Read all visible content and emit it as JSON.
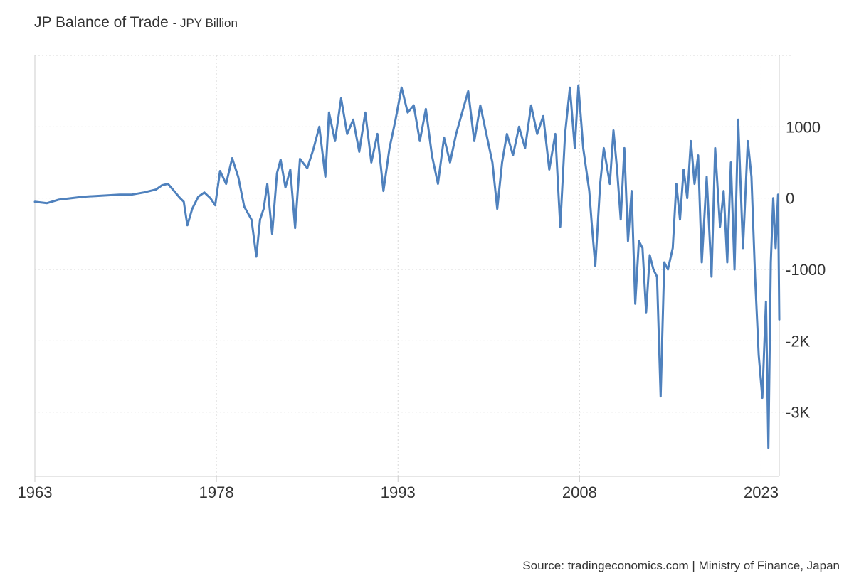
{
  "title": "JP Balance of Trade",
  "subtitle": "- JPY Billion",
  "source": "Source: tradingeconomics.com | Ministry of Finance, Japan",
  "colors": {
    "line": "#4f81bd",
    "grid": "#d9d9d9",
    "axis": "#cccccc",
    "text": "#333333"
  },
  "chart_data": {
    "type": "line",
    "title": "JP Balance of Trade",
    "subtitle": "- JPY Billion",
    "xlabel": "",
    "ylabel": "",
    "grid": true,
    "legend": "none",
    "xlim": [
      1963.0,
      2024.5
    ],
    "ylim": [
      -3900,
      2000
    ],
    "x_ticks": [
      {
        "value": 1963,
        "label": "1963"
      },
      {
        "value": 1978,
        "label": "1978"
      },
      {
        "value": 1993,
        "label": "1993"
      },
      {
        "value": 2008,
        "label": "2008"
      },
      {
        "value": 2023,
        "label": "2023"
      }
    ],
    "y_ticks": [
      {
        "value": 1000,
        "label": "1000"
      },
      {
        "value": 0,
        "label": "0"
      },
      {
        "value": -1000,
        "label": "-1000"
      },
      {
        "value": -2000,
        "label": "-2K"
      },
      {
        "value": -3000,
        "label": "-3K"
      }
    ],
    "series": [
      {
        "values": [
          [
            1963.0,
            -50
          ],
          [
            1964.0,
            -70
          ],
          [
            1965.0,
            -20
          ],
          [
            1966.0,
            0
          ],
          [
            1967.0,
            20
          ],
          [
            1968.0,
            30
          ],
          [
            1969.0,
            40
          ],
          [
            1970.0,
            50
          ],
          [
            1971.0,
            50
          ],
          [
            1972.0,
            80
          ],
          [
            1973.0,
            120
          ],
          [
            1973.5,
            180
          ],
          [
            1974.0,
            200
          ],
          [
            1974.5,
            100
          ],
          [
            1975.0,
            0
          ],
          [
            1975.3,
            -50
          ],
          [
            1975.6,
            -380
          ],
          [
            1976.0,
            -150
          ],
          [
            1976.5,
            20
          ],
          [
            1977.0,
            80
          ],
          [
            1977.5,
            0
          ],
          [
            1977.9,
            -100
          ],
          [
            1978.3,
            380
          ],
          [
            1978.8,
            200
          ],
          [
            1979.3,
            560
          ],
          [
            1979.8,
            300
          ],
          [
            1980.3,
            -120
          ],
          [
            1980.9,
            -300
          ],
          [
            1981.3,
            -820
          ],
          [
            1981.6,
            -300
          ],
          [
            1981.9,
            -150
          ],
          [
            1982.2,
            200
          ],
          [
            1982.6,
            -500
          ],
          [
            1983.0,
            350
          ],
          [
            1983.3,
            540
          ],
          [
            1983.7,
            150
          ],
          [
            1984.1,
            400
          ],
          [
            1984.5,
            -420
          ],
          [
            1984.9,
            550
          ],
          [
            1985.5,
            420
          ],
          [
            1986.0,
            680
          ],
          [
            1986.5,
            1000
          ],
          [
            1987.0,
            300
          ],
          [
            1987.3,
            1200
          ],
          [
            1987.8,
            800
          ],
          [
            1988.3,
            1400
          ],
          [
            1988.8,
            900
          ],
          [
            1989.3,
            1100
          ],
          [
            1989.8,
            650
          ],
          [
            1990.3,
            1200
          ],
          [
            1990.8,
            500
          ],
          [
            1991.3,
            900
          ],
          [
            1991.8,
            100
          ],
          [
            1992.3,
            700
          ],
          [
            1992.8,
            1100
          ],
          [
            1993.3,
            1550
          ],
          [
            1993.8,
            1200
          ],
          [
            1994.3,
            1300
          ],
          [
            1994.8,
            800
          ],
          [
            1995.3,
            1250
          ],
          [
            1995.8,
            600
          ],
          [
            1996.3,
            200
          ],
          [
            1996.8,
            850
          ],
          [
            1997.3,
            500
          ],
          [
            1997.8,
            900
          ],
          [
            1998.3,
            1200
          ],
          [
            1998.8,
            1500
          ],
          [
            1999.3,
            800
          ],
          [
            1999.8,
            1300
          ],
          [
            2000.3,
            900
          ],
          [
            2000.8,
            500
          ],
          [
            2001.2,
            -150
          ],
          [
            2001.6,
            500
          ],
          [
            2002.0,
            900
          ],
          [
            2002.5,
            600
          ],
          [
            2003.0,
            1000
          ],
          [
            2003.5,
            700
          ],
          [
            2004.0,
            1300
          ],
          [
            2004.5,
            900
          ],
          [
            2005.0,
            1150
          ],
          [
            2005.5,
            400
          ],
          [
            2006.0,
            900
          ],
          [
            2006.4,
            -400
          ],
          [
            2006.8,
            900
          ],
          [
            2007.2,
            1550
          ],
          [
            2007.6,
            700
          ],
          [
            2007.9,
            1580
          ],
          [
            2008.3,
            700
          ],
          [
            2008.8,
            100
          ],
          [
            2009.0,
            -350
          ],
          [
            2009.3,
            -950
          ],
          [
            2009.7,
            200
          ],
          [
            2010.0,
            700
          ],
          [
            2010.5,
            200
          ],
          [
            2010.8,
            950
          ],
          [
            2011.1,
            400
          ],
          [
            2011.4,
            -300
          ],
          [
            2011.7,
            700
          ],
          [
            2012.0,
            -600
          ],
          [
            2012.3,
            100
          ],
          [
            2012.6,
            -1480
          ],
          [
            2012.9,
            -600
          ],
          [
            2013.2,
            -700
          ],
          [
            2013.5,
            -1600
          ],
          [
            2013.8,
            -800
          ],
          [
            2014.1,
            -1000
          ],
          [
            2014.4,
            -1100
          ],
          [
            2014.7,
            -2780
          ],
          [
            2015.0,
            -900
          ],
          [
            2015.3,
            -1000
          ],
          [
            2015.7,
            -700
          ],
          [
            2016.0,
            200
          ],
          [
            2016.3,
            -300
          ],
          [
            2016.6,
            400
          ],
          [
            2016.9,
            0
          ],
          [
            2017.2,
            800
          ],
          [
            2017.5,
            200
          ],
          [
            2017.8,
            600
          ],
          [
            2018.1,
            -900
          ],
          [
            2018.5,
            300
          ],
          [
            2018.9,
            -1100
          ],
          [
            2019.2,
            700
          ],
          [
            2019.6,
            -400
          ],
          [
            2019.9,
            100
          ],
          [
            2020.2,
            -900
          ],
          [
            2020.5,
            500
          ],
          [
            2020.8,
            -1000
          ],
          [
            2021.1,
            1100
          ],
          [
            2021.5,
            -700
          ],
          [
            2021.9,
            800
          ],
          [
            2022.2,
            300
          ],
          [
            2022.5,
            -1100
          ],
          [
            2022.8,
            -2200
          ],
          [
            2023.1,
            -2800
          ],
          [
            2023.4,
            -1450
          ],
          [
            2023.6,
            -3500
          ],
          [
            2023.8,
            -900
          ],
          [
            2024.0,
            0
          ],
          [
            2024.2,
            -700
          ],
          [
            2024.4,
            50
          ],
          [
            2024.5,
            -1700
          ]
        ]
      }
    ]
  }
}
